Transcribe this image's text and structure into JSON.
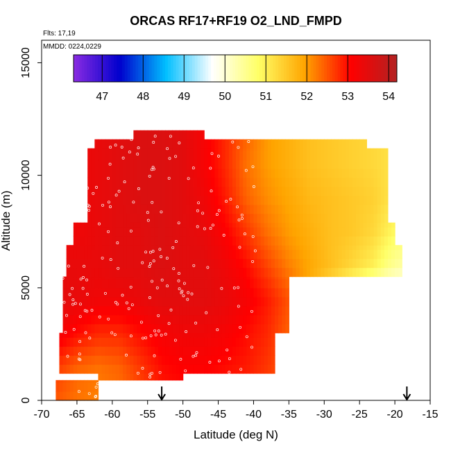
{
  "chart_data": {
    "type": "heatmap",
    "title": "ORCAS RF17+RF19 O2_LND_FMPD",
    "annotations": [
      "Flts: 17,19",
      "MMDD: 0224,0229"
    ],
    "xlabel": "Latitude (deg N)",
    "ylabel": "Altitude (m)",
    "xlim": [
      -70,
      -15
    ],
    "ylim": [
      0,
      16000
    ],
    "x_ticks": [
      -70,
      -65,
      -60,
      -55,
      -50,
      -45,
      -40,
      -35,
      -30,
      -25,
      -20,
      -15
    ],
    "y_ticks": [
      0,
      5000,
      10000,
      15000
    ],
    "colorbar": {
      "ticks": [
        47,
        48,
        49,
        50,
        51,
        52,
        53,
        54
      ],
      "range": [
        46.3,
        54.2
      ],
      "colors": [
        "#8a2be2",
        "#0000cd",
        "#00bfff",
        "#ffffff",
        "#ffff66",
        "#ffa500",
        "#ff0000",
        "#b22222"
      ],
      "location": "top"
    },
    "field": {
      "lat_points": [
        -68,
        -65,
        -62,
        -59,
        -56,
        -53,
        -50,
        -47,
        -44,
        -41,
        -38,
        -35,
        -32,
        -29,
        -26,
        -23,
        -21,
        -19.5
      ],
      "alt_points": [
        200,
        1500,
        3000,
        4500,
        6000,
        7500,
        9000,
        10500,
        12000
      ],
      "values": [
        [
          52.5,
          52.3,
          52.2,
          52.3,
          52.6,
          52.9,
          53.0,
          53.0,
          52.9,
          52.8,
          52.6,
          52.4,
          52.0,
          51.4,
          50.9,
          50.5,
          50.3,
          50.2
        ],
        [
          52.7,
          52.4,
          52.3,
          52.4,
          52.7,
          53.0,
          53.1,
          53.1,
          53.0,
          52.9,
          52.7,
          52.4,
          51.6,
          50.8,
          49.8,
          48.5,
          47.3,
          46.8
        ],
        [
          53.3,
          53.0,
          52.8,
          52.8,
          53.0,
          53.2,
          53.3,
          53.3,
          53.2,
          53.0,
          52.8,
          52.4,
          51.2,
          50.3,
          49.2,
          48.0,
          47.2,
          46.8
        ],
        [
          53.5,
          53.4,
          53.3,
          53.3,
          53.4,
          53.5,
          53.5,
          53.5,
          53.4,
          53.2,
          52.9,
          52.5,
          51.8,
          51.0,
          50.3,
          49.7,
          49.5,
          49.4
        ],
        [
          53.4,
          53.4,
          53.4,
          53.5,
          53.5,
          53.6,
          53.5,
          53.5,
          53.3,
          53.0,
          52.6,
          52.2,
          51.9,
          51.6,
          51.3,
          51.0,
          50.6,
          50.4
        ],
        [
          53.3,
          53.3,
          53.4,
          53.5,
          53.5,
          53.6,
          53.5,
          53.4,
          53.1,
          52.7,
          52.3,
          52.0,
          51.8,
          51.6,
          51.5,
          51.3,
          51.0,
          50.8
        ],
        [
          53.2,
          53.3,
          53.4,
          53.5,
          53.6,
          53.6,
          53.5,
          53.3,
          52.9,
          52.4,
          52.1,
          51.9,
          51.7,
          51.6,
          51.5,
          51.4,
          51.2,
          51.1
        ],
        [
          53.2,
          53.3,
          53.4,
          53.5,
          53.6,
          53.6,
          53.5,
          53.2,
          52.8,
          52.3,
          52.0,
          51.8,
          51.6,
          51.5,
          51.4,
          51.3,
          51.2,
          51.1
        ],
        [
          53.2,
          53.3,
          53.4,
          53.5,
          53.6,
          53.6,
          53.5,
          53.2,
          52.8,
          52.4,
          52.0,
          51.8,
          51.6,
          51.5,
          51.4,
          51.3,
          51.2,
          51.1
        ]
      ],
      "coverage": [
        {
          "lat_min": -68.0,
          "lat_max": -62.0,
          "alt_top": 900
        },
        {
          "lat_min": -62.0,
          "lat_max": -50.0,
          "alt_top": 1200
        },
        {
          "lat_min": -67.5,
          "lat_max": -37.0,
          "alt_top": 3000
        },
        {
          "lat_min": -67.0,
          "lat_max": -35.0,
          "alt_top": 5500
        },
        {
          "lat_min": -66.5,
          "lat_max": -19.0,
          "alt_top": 6900
        },
        {
          "lat_min": -65.5,
          "lat_max": -20.0,
          "alt_top": 7900
        },
        {
          "lat_min": -63.5,
          "lat_max": -21.0,
          "alt_top": 11200
        },
        {
          "lat_min": -62.5,
          "lat_max": -24.0,
          "alt_top": 11600
        },
        {
          "lat_min": -57.0,
          "lat_max": -47.0,
          "alt_top": 12000
        }
      ]
    },
    "markers": [
      {
        "type": "arrow-down",
        "lat": -53,
        "label": ""
      },
      {
        "type": "arrow-down",
        "lat": -18.3,
        "label": ""
      }
    ],
    "grid": false,
    "legend": "colorbar-top"
  }
}
